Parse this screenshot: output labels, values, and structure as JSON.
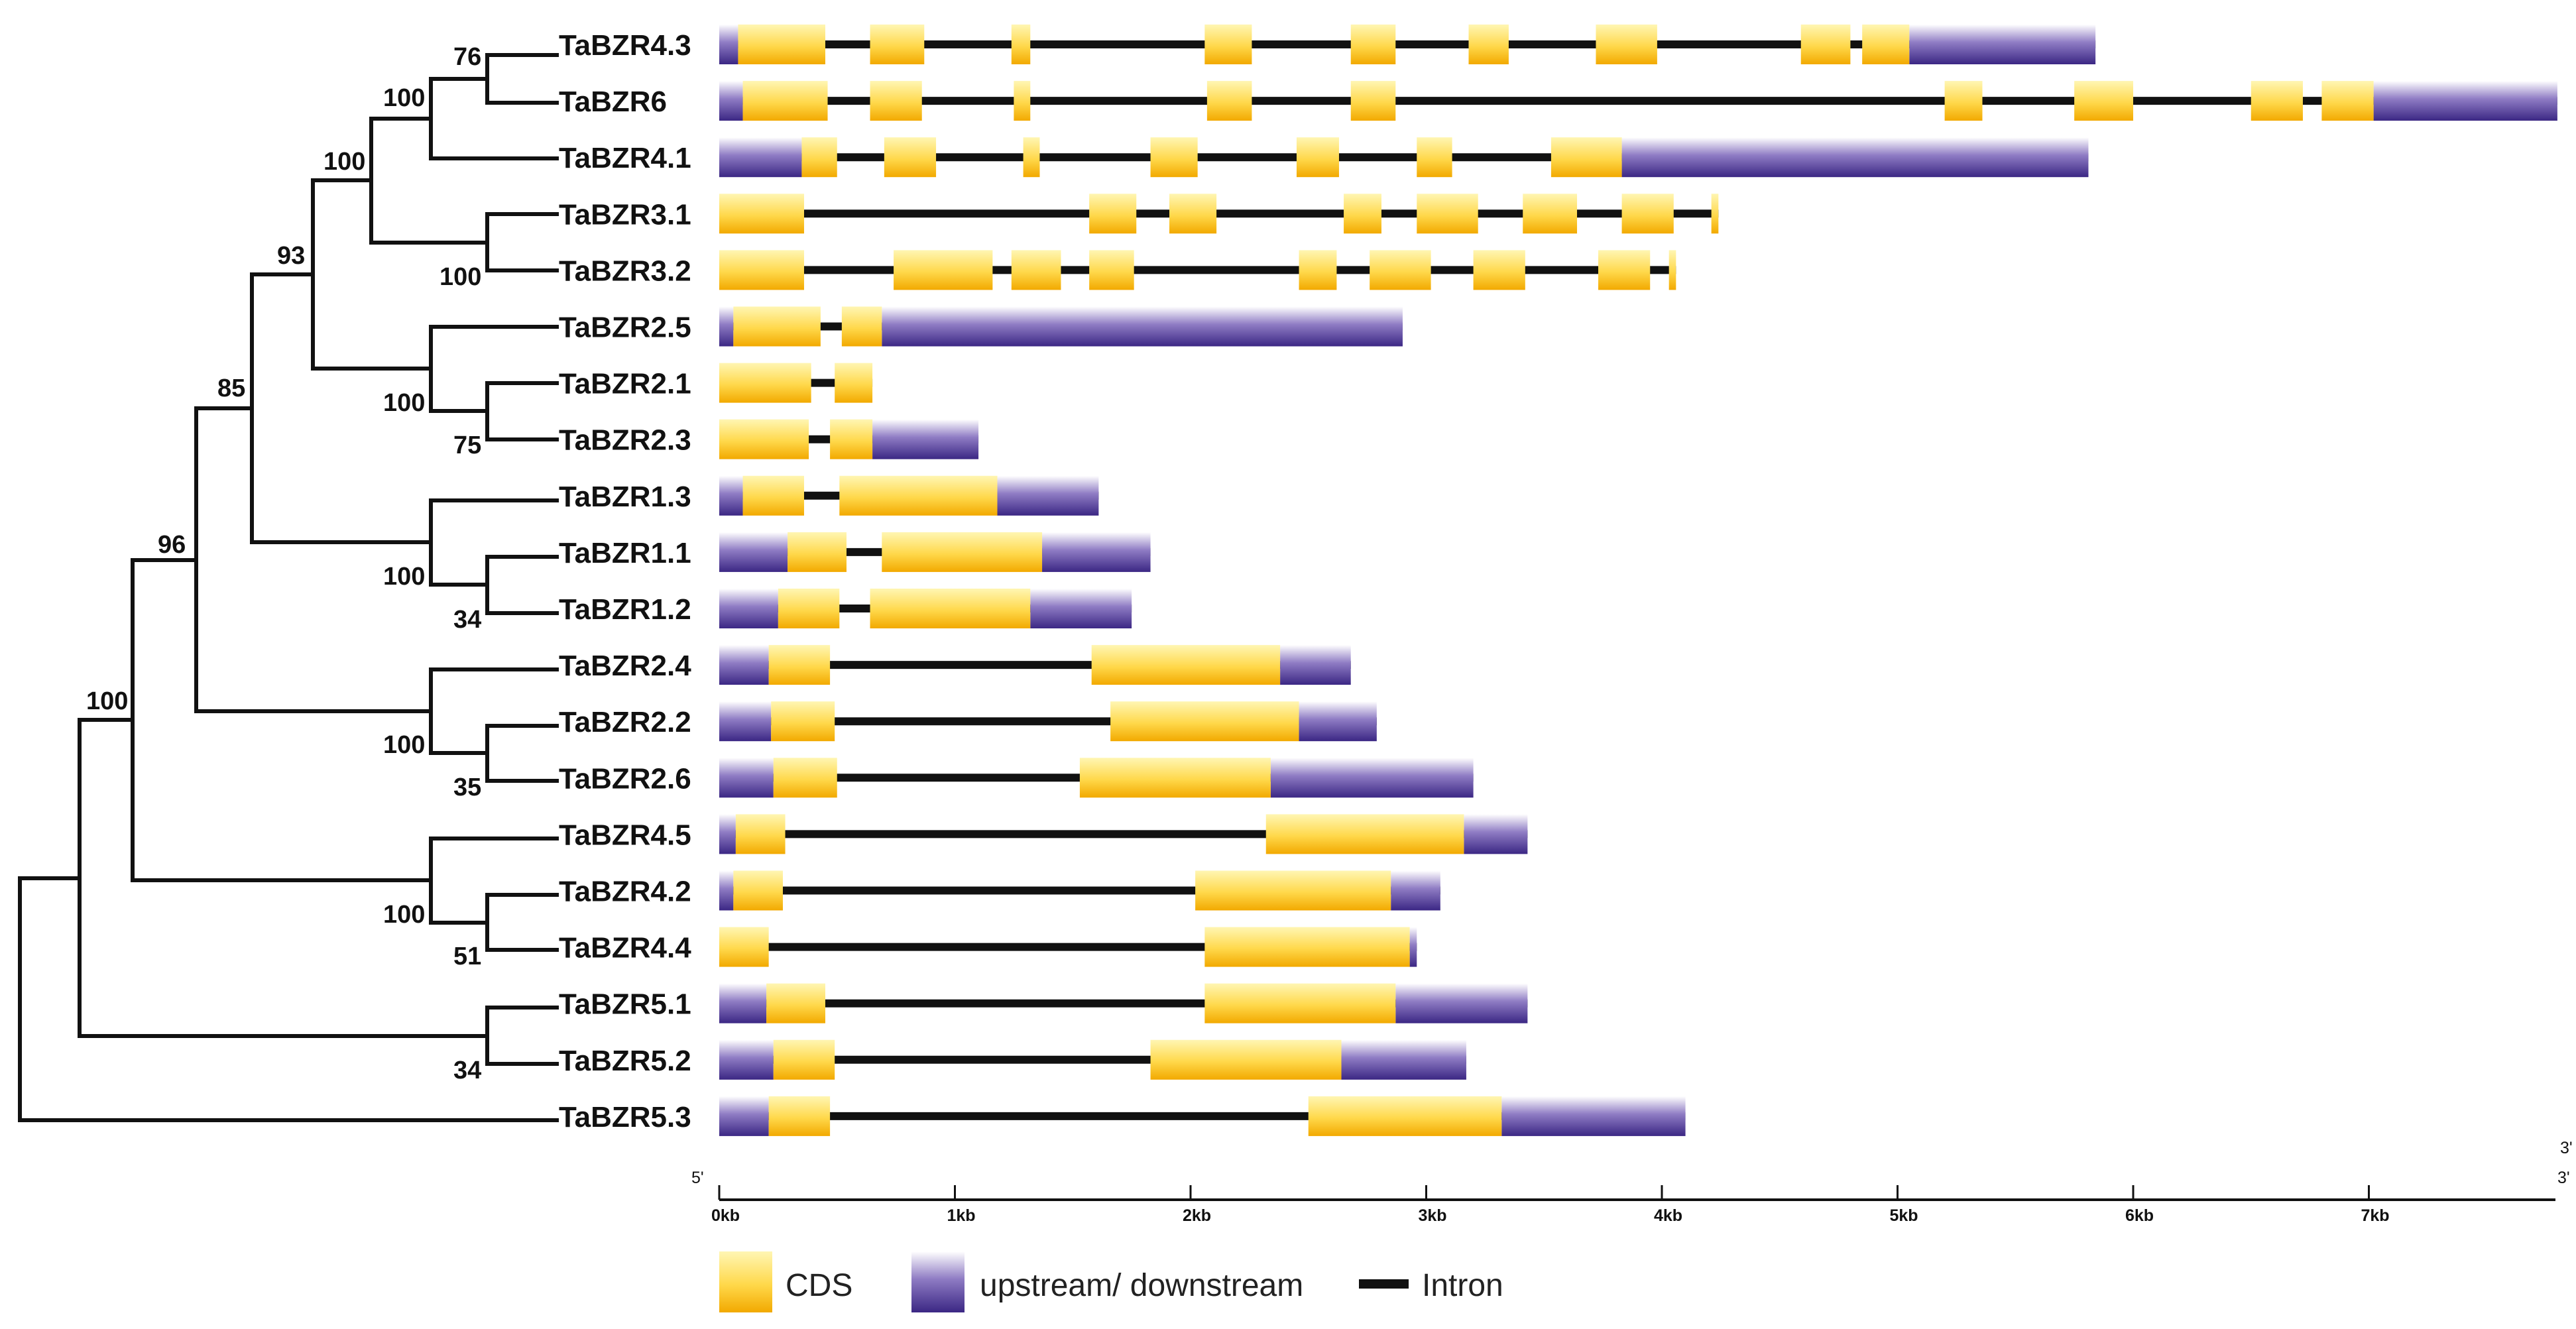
{
  "colors": {
    "cds_top": "#fff6b3",
    "cds_mid": "#ffd84a",
    "cds_bottom": "#f2a900",
    "utr_top": "#ffffff",
    "utr_mid": "#8f7cc4",
    "utr_bottom": "#3b2784",
    "intron": "#111111",
    "line": "#111111"
  },
  "tree": {
    "bootstraps": [
      {
        "id": "n_43_6",
        "value": "76"
      },
      {
        "id": "n_41",
        "value": "100"
      },
      {
        "id": "n_3x",
        "value": "100"
      },
      {
        "id": "n_31_32",
        "value": "100"
      },
      {
        "id": "n_93",
        "value": "93"
      },
      {
        "id": "n_2x",
        "value": "100"
      },
      {
        "id": "n_21_23",
        "value": "75"
      },
      {
        "id": "n_85",
        "value": "85"
      },
      {
        "id": "n_1x",
        "value": "100"
      },
      {
        "id": "n_11_12",
        "value": "34"
      },
      {
        "id": "n_96",
        "value": "96"
      },
      {
        "id": "n_24x",
        "value": "100"
      },
      {
        "id": "n_22_26",
        "value": "35"
      },
      {
        "id": "n_100root",
        "value": "100"
      },
      {
        "id": "n_45x",
        "value": "100"
      },
      {
        "id": "n_42_44",
        "value": "51"
      },
      {
        "id": "n_51_52",
        "value": "34"
      }
    ]
  },
  "chart_data": {
    "type": "gene-structure",
    "scale_unit": "kb",
    "xlim": [
      0,
      7.8
    ],
    "genes": [
      {
        "name": "TaBZR4.3",
        "length": 5.84,
        "utr": [
          [
            0,
            0.08
          ],
          [
            5.05,
            5.84
          ]
        ],
        "cds": [
          [
            0.08,
            0.45
          ],
          [
            0.64,
            0.87
          ],
          [
            1.24,
            1.32
          ],
          [
            2.06,
            2.26
          ],
          [
            2.68,
            2.87
          ],
          [
            3.18,
            3.35
          ],
          [
            3.72,
            3.98
          ],
          [
            4.59,
            4.8
          ],
          [
            4.85,
            5.05
          ]
        ]
      },
      {
        "name": "TaBZR6",
        "length": 7.8,
        "utr": [
          [
            0,
            0.1
          ],
          [
            7.02,
            7.8
          ]
        ],
        "cds": [
          [
            0.1,
            0.46
          ],
          [
            0.64,
            0.86
          ],
          [
            1.25,
            1.32
          ],
          [
            2.07,
            2.26
          ],
          [
            2.68,
            2.87
          ],
          [
            5.2,
            5.36
          ],
          [
            5.75,
            6.0
          ],
          [
            6.5,
            6.72
          ],
          [
            6.8,
            7.02
          ]
        ]
      },
      {
        "name": "TaBZR4.1",
        "length": 5.81,
        "utr": [
          [
            0,
            0.35
          ],
          [
            3.83,
            5.81
          ]
        ],
        "cds": [
          [
            0.35,
            0.5
          ],
          [
            0.7,
            0.92
          ],
          [
            1.29,
            1.36
          ],
          [
            1.83,
            2.03
          ],
          [
            2.45,
            2.63
          ],
          [
            2.96,
            3.11
          ],
          [
            3.53,
            3.83
          ]
        ]
      },
      {
        "name": "TaBZR3.1",
        "length": 4.24,
        "utr": [],
        "cds": [
          [
            0,
            0.36
          ],
          [
            1.57,
            1.77
          ],
          [
            1.91,
            2.11
          ],
          [
            2.65,
            2.81
          ],
          [
            2.96,
            3.22
          ],
          [
            3.41,
            3.64
          ],
          [
            3.83,
            4.05
          ],
          [
            4.21,
            4.24
          ]
        ]
      },
      {
        "name": "TaBZR3.2",
        "length": 4.06,
        "utr": [],
        "cds": [
          [
            0,
            0.36
          ],
          [
            0.74,
            1.16
          ],
          [
            1.24,
            1.45
          ],
          [
            1.57,
            1.76
          ],
          [
            2.46,
            2.62
          ],
          [
            2.76,
            3.02
          ],
          [
            3.2,
            3.42
          ],
          [
            3.73,
            3.95
          ],
          [
            4.03,
            4.06
          ]
        ]
      },
      {
        "name": "TaBZR2.5",
        "length": 2.9,
        "utr": [
          [
            0,
            0.06
          ],
          [
            0.69,
            2.9
          ]
        ],
        "cds": [
          [
            0.06,
            0.43
          ],
          [
            0.52,
            0.69
          ]
        ]
      },
      {
        "name": "TaBZR2.1",
        "length": 0.65,
        "utr": [],
        "cds": [
          [
            0,
            0.39
          ],
          [
            0.49,
            0.65
          ]
        ]
      },
      {
        "name": "TaBZR2.3",
        "length": 1.1,
        "utr": [
          [
            0.65,
            1.1
          ]
        ],
        "cds": [
          [
            0,
            0.38
          ],
          [
            0.47,
            0.65
          ]
        ]
      },
      {
        "name": "TaBZR1.3",
        "length": 1.61,
        "utr": [
          [
            0,
            0.1
          ],
          [
            1.18,
            1.61
          ]
        ],
        "cds": [
          [
            0.1,
            0.36
          ],
          [
            0.51,
            1.18
          ]
        ]
      },
      {
        "name": "TaBZR1.1",
        "length": 1.83,
        "utr": [
          [
            0,
            0.29
          ],
          [
            1.37,
            1.83
          ]
        ],
        "cds": [
          [
            0.29,
            0.54
          ],
          [
            0.69,
            1.37
          ]
        ]
      },
      {
        "name": "TaBZR1.2",
        "length": 1.75,
        "utr": [
          [
            0,
            0.25
          ],
          [
            1.32,
            1.75
          ]
        ],
        "cds": [
          [
            0.25,
            0.51
          ],
          [
            0.64,
            1.32
          ]
        ]
      },
      {
        "name": "TaBZR2.4",
        "length": 2.68,
        "utr": [
          [
            0,
            0.21
          ],
          [
            2.38,
            2.68
          ]
        ],
        "cds": [
          [
            0.21,
            0.47
          ],
          [
            1.58,
            2.38
          ]
        ]
      },
      {
        "name": "TaBZR2.2",
        "length": 2.79,
        "utr": [
          [
            0,
            0.22
          ],
          [
            2.46,
            2.79
          ]
        ],
        "cds": [
          [
            0.22,
            0.49
          ],
          [
            1.66,
            2.46
          ]
        ]
      },
      {
        "name": "TaBZR2.6",
        "length": 3.2,
        "utr": [
          [
            0,
            0.23
          ],
          [
            2.34,
            3.2
          ]
        ],
        "cds": [
          [
            0.23,
            0.5
          ],
          [
            1.53,
            2.34
          ]
        ]
      },
      {
        "name": "TaBZR4.5",
        "length": 3.43,
        "utr": [
          [
            0,
            0.07
          ],
          [
            3.16,
            3.43
          ]
        ],
        "cds": [
          [
            0.07,
            0.28
          ],
          [
            2.32,
            3.16
          ]
        ]
      },
      {
        "name": "TaBZR4.2",
        "length": 3.06,
        "utr": [
          [
            0,
            0.06
          ],
          [
            2.85,
            3.06
          ]
        ],
        "cds": [
          [
            0.06,
            0.27
          ],
          [
            2.02,
            2.85
          ]
        ]
      },
      {
        "name": "TaBZR4.4",
        "length": 2.96,
        "utr": [
          [
            2.93,
            2.96
          ]
        ],
        "cds": [
          [
            0,
            0.21
          ],
          [
            2.06,
            2.93
          ]
        ]
      },
      {
        "name": "TaBZR5.1",
        "length": 3.43,
        "utr": [
          [
            0,
            0.2
          ],
          [
            2.87,
            3.43
          ]
        ],
        "cds": [
          [
            0.2,
            0.45
          ],
          [
            2.06,
            2.87
          ]
        ]
      },
      {
        "name": "TaBZR5.2",
        "length": 3.17,
        "utr": [
          [
            0,
            0.23
          ],
          [
            2.64,
            3.17
          ]
        ],
        "cds": [
          [
            0.23,
            0.49
          ],
          [
            1.83,
            2.64
          ]
        ]
      },
      {
        "name": "TaBZR5.3",
        "length": 4.1,
        "utr": [
          [
            0,
            0.21
          ],
          [
            3.32,
            4.1
          ]
        ],
        "cds": [
          [
            0.21,
            0.47
          ],
          [
            2.5,
            3.32
          ]
        ]
      }
    ],
    "axis": {
      "ticks": [
        {
          "value": 0,
          "label": "0kb"
        },
        {
          "value": 1,
          "label": "1kb"
        },
        {
          "value": 2,
          "label": "2kb"
        },
        {
          "value": 3,
          "label": "3kb"
        },
        {
          "value": 4,
          "label": "4kb"
        },
        {
          "value": 5,
          "label": "5kb"
        },
        {
          "value": 6,
          "label": "6kb"
        },
        {
          "value": 7,
          "label": "7kb"
        }
      ],
      "start_label": "5'",
      "end_label": "3'",
      "end_label_top": "3'"
    },
    "legend": [
      {
        "key": "cds",
        "label": "CDS"
      },
      {
        "key": "utr",
        "label": "upstream/ downstream"
      },
      {
        "key": "intron",
        "label": "Intron"
      }
    ]
  }
}
